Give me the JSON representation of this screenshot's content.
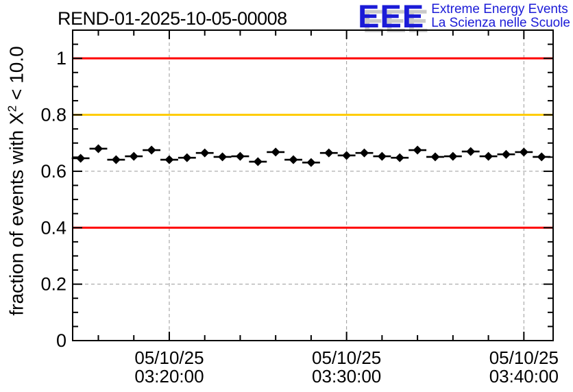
{
  "header": {
    "title": "REND-01-2025-10-05-00008",
    "logo": {
      "acronym": "EEE",
      "line1": "Extreme Energy Events",
      "line2": "La Scienza nelle Scuole"
    }
  },
  "colors": {
    "logo_blue": "#1b1bd7",
    "logo_shadow": "#c9c9c9",
    "alarm_red": "#ff0000",
    "warning_orange": "#ffcc00",
    "grid_gray": "#9a9a9a",
    "marker_black": "#000000"
  },
  "chart_data": {
    "type": "scatter",
    "title": "REND-01-2025-10-05-00008",
    "ylabel": {
      "pre": "fraction of events with X",
      "sup": "2",
      "post": " < 10.0"
    },
    "ylim": [
      0,
      1.1
    ],
    "y_major_ticks": [
      0,
      0.2,
      0.4,
      0.6,
      0.8,
      1
    ],
    "y_tick_labels": [
      "0",
      "0.2",
      "0.4",
      "0.6",
      "0.8",
      "1"
    ],
    "y_minor_step": 0.05,
    "grid": true,
    "legend_position": "none",
    "x_domain_minutes": [
      14.55,
      41.65
    ],
    "x_minor_step_minutes": 2,
    "x_major_ticks": [
      {
        "minute": 20,
        "date": "05/10/25",
        "time": "03:20:00"
      },
      {
        "minute": 30,
        "date": "05/10/25",
        "time": "03:30:00"
      },
      {
        "minute": 40,
        "date": "05/10/25",
        "time": "03:40:00"
      }
    ],
    "threshold_lines": [
      {
        "value": 1.0,
        "color": "#ff0000"
      },
      {
        "value": 0.8,
        "color": "#ffcc00"
      },
      {
        "value": 0.4,
        "color": "#ff0000"
      }
    ],
    "series": [
      {
        "name": "fraction of events with chi2 < 10",
        "marker": "diamond",
        "color": "#000000",
        "x_error_minutes": 0.5,
        "points": [
          {
            "t": "03:15:00",
            "m": 15,
            "v": 0.646
          },
          {
            "t": "03:16:00",
            "m": 16,
            "v": 0.68
          },
          {
            "t": "03:17:00",
            "m": 17,
            "v": 0.641
          },
          {
            "t": "03:18:00",
            "m": 18,
            "v": 0.653
          },
          {
            "t": "03:19:00",
            "m": 19,
            "v": 0.675
          },
          {
            "t": "03:20:00",
            "m": 20,
            "v": 0.641
          },
          {
            "t": "03:21:00",
            "m": 21,
            "v": 0.648
          },
          {
            "t": "03:22:00",
            "m": 22,
            "v": 0.665
          },
          {
            "t": "03:23:00",
            "m": 23,
            "v": 0.651
          },
          {
            "t": "03:24:00",
            "m": 24,
            "v": 0.653
          },
          {
            "t": "03:25:00",
            "m": 25,
            "v": 0.634
          },
          {
            "t": "03:26:00",
            "m": 26,
            "v": 0.668
          },
          {
            "t": "03:27:00",
            "m": 27,
            "v": 0.641
          },
          {
            "t": "03:28:00",
            "m": 28,
            "v": 0.631
          },
          {
            "t": "03:29:00",
            "m": 29,
            "v": 0.665
          },
          {
            "t": "03:30:00",
            "m": 30,
            "v": 0.656
          },
          {
            "t": "03:31:00",
            "m": 31,
            "v": 0.665
          },
          {
            "t": "03:32:00",
            "m": 32,
            "v": 0.653
          },
          {
            "t": "03:33:00",
            "m": 33,
            "v": 0.648
          },
          {
            "t": "03:34:00",
            "m": 34,
            "v": 0.675
          },
          {
            "t": "03:35:00",
            "m": 35,
            "v": 0.651
          },
          {
            "t": "03:36:00",
            "m": 36,
            "v": 0.653
          },
          {
            "t": "03:37:00",
            "m": 37,
            "v": 0.67
          },
          {
            "t": "03:38:00",
            "m": 38,
            "v": 0.653
          },
          {
            "t": "03:39:00",
            "m": 39,
            "v": 0.66
          },
          {
            "t": "03:40:00",
            "m": 40,
            "v": 0.668
          },
          {
            "t": "03:41:00",
            "m": 41,
            "v": 0.651
          }
        ]
      }
    ]
  }
}
